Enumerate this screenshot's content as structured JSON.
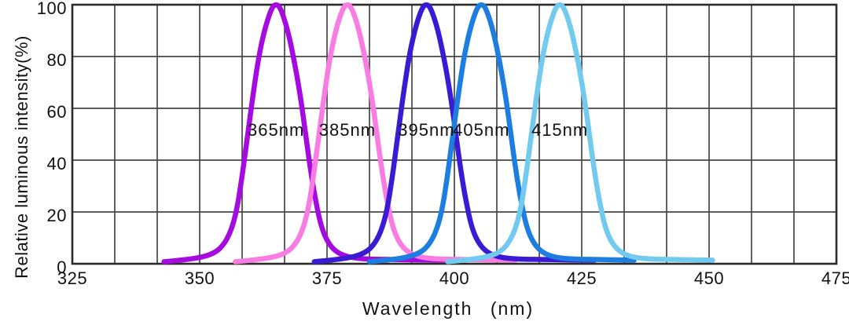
{
  "chart_data": {
    "type": "line",
    "title": "",
    "xlabel": "Wavelength (nm)",
    "ylabel": "Relative luminous intensity(%)",
    "xlim": [
      325,
      475
    ],
    "ylim": [
      0,
      100
    ],
    "x_ticks": [
      325,
      350,
      375,
      400,
      425,
      450,
      475
    ],
    "y_ticks": [
      0,
      20,
      40,
      60,
      80,
      100
    ],
    "x_grid_divisions": 18,
    "grid": "on",
    "legend": "none",
    "series": [
      {
        "label": "365nm",
        "nominal_peak_nm": 365,
        "peak_nm_as_drawn": 365.0,
        "peak_intensity_pct": 100,
        "color": "#A50ADF",
        "label_anchor": {
          "nm": 365.0,
          "pct": 51.5
        },
        "points": [
          [
            343,
            0.8
          ],
          [
            349,
            1.8
          ],
          [
            353,
            4
          ],
          [
            355,
            8
          ],
          [
            356.4,
            14
          ],
          [
            357.4,
            22
          ],
          [
            358.2,
            32
          ],
          [
            358.9,
            42
          ],
          [
            359.7,
            54
          ],
          [
            360.6,
            67
          ],
          [
            361.6,
            80
          ],
          [
            362.7,
            90
          ],
          [
            363.8,
            97
          ],
          [
            364.5,
            99.7
          ],
          [
            365,
            100
          ],
          [
            365.5,
            99.7
          ],
          [
            366.2,
            97
          ],
          [
            367.3,
            90
          ],
          [
            368.4,
            80
          ],
          [
            369.5,
            68
          ],
          [
            370.4,
            56
          ],
          [
            371.2,
            44
          ],
          [
            372,
            33
          ],
          [
            372.9,
            23
          ],
          [
            373.9,
            14
          ],
          [
            375.2,
            8
          ],
          [
            377,
            4.2
          ],
          [
            379.5,
            2.4
          ],
          [
            383,
            1.8
          ],
          [
            389,
            1.6
          ],
          [
            398,
            1.4
          ]
        ]
      },
      {
        "label": "385nm",
        "nominal_peak_nm": 385,
        "peak_nm_as_drawn": 379.0,
        "peak_intensity_pct": 100,
        "color": "#F97CE3",
        "label_anchor": {
          "nm": 379.0,
          "pct": 51.5
        },
        "points": [
          [
            357,
            0.8
          ],
          [
            363,
            1.8
          ],
          [
            367,
            4
          ],
          [
            369,
            8
          ],
          [
            370.4,
            14
          ],
          [
            371.4,
            22
          ],
          [
            372.2,
            32
          ],
          [
            372.9,
            42
          ],
          [
            373.7,
            54
          ],
          [
            374.6,
            67
          ],
          [
            375.6,
            80
          ],
          [
            376.7,
            90
          ],
          [
            377.8,
            97
          ],
          [
            378.5,
            99.7
          ],
          [
            379,
            100
          ],
          [
            379.5,
            99.7
          ],
          [
            380.2,
            97
          ],
          [
            381.3,
            90
          ],
          [
            382.4,
            80
          ],
          [
            383.5,
            68
          ],
          [
            384.4,
            56
          ],
          [
            385.2,
            44
          ],
          [
            386,
            33
          ],
          [
            386.9,
            23
          ],
          [
            387.9,
            14
          ],
          [
            389.2,
            8
          ],
          [
            391,
            4.2
          ],
          [
            393.5,
            2.4
          ],
          [
            397,
            1.8
          ],
          [
            403,
            1.6
          ],
          [
            412,
            1.4
          ]
        ]
      },
      {
        "label": "395nm",
        "nominal_peak_nm": 395,
        "peak_nm_as_drawn": 394.5,
        "peak_intensity_pct": 100,
        "color": "#3A1BD3",
        "label_anchor": {
          "nm": 394.5,
          "pct": 51.5
        },
        "points": [
          [
            372.5,
            0.8
          ],
          [
            378.5,
            1.8
          ],
          [
            382.5,
            4
          ],
          [
            384.5,
            8
          ],
          [
            385.9,
            14
          ],
          [
            386.9,
            22
          ],
          [
            387.7,
            32
          ],
          [
            388.4,
            42
          ],
          [
            389.2,
            54
          ],
          [
            390.1,
            67
          ],
          [
            391.1,
            80
          ],
          [
            392.2,
            90
          ],
          [
            393.3,
            97
          ],
          [
            394,
            99.7
          ],
          [
            394.5,
            100
          ],
          [
            395,
            99.7
          ],
          [
            395.7,
            97
          ],
          [
            396.8,
            90
          ],
          [
            397.9,
            80
          ],
          [
            399,
            68
          ],
          [
            399.9,
            56
          ],
          [
            400.7,
            44
          ],
          [
            401.5,
            33
          ],
          [
            402.4,
            23
          ],
          [
            403.4,
            14
          ],
          [
            404.7,
            8
          ],
          [
            406.5,
            4.2
          ],
          [
            409,
            2.4
          ],
          [
            412.5,
            1.8
          ],
          [
            418.5,
            1.6
          ],
          [
            427.5,
            1.4
          ]
        ]
      },
      {
        "label": "405nm",
        "nominal_peak_nm": 405,
        "peak_nm_as_drawn": 405.3,
        "peak_intensity_pct": 100,
        "color": "#1E7EDF",
        "label_anchor": {
          "nm": 405.3,
          "pct": 51.5
        },
        "points": [
          [
            383.3,
            0.8
          ],
          [
            389.3,
            1.8
          ],
          [
            393.3,
            4
          ],
          [
            395.3,
            8
          ],
          [
            396.7,
            14
          ],
          [
            397.7,
            22
          ],
          [
            398.5,
            32
          ],
          [
            399.2,
            42
          ],
          [
            400,
            54
          ],
          [
            400.9,
            67
          ],
          [
            401.9,
            80
          ],
          [
            403,
            90
          ],
          [
            404.1,
            97
          ],
          [
            404.8,
            99.7
          ],
          [
            405.3,
            100
          ],
          [
            405.8,
            99.7
          ],
          [
            406.5,
            97
          ],
          [
            407.6,
            90
          ],
          [
            408.7,
            80
          ],
          [
            409.8,
            68
          ],
          [
            410.7,
            56
          ],
          [
            411.5,
            44
          ],
          [
            412.3,
            33
          ],
          [
            413.2,
            23
          ],
          [
            414.2,
            14
          ],
          [
            415.5,
            8
          ],
          [
            417.3,
            4.2
          ],
          [
            419.8,
            2.4
          ],
          [
            423.3,
            1.8
          ],
          [
            429.3,
            1.6
          ],
          [
            435.3,
            1.4
          ]
        ]
      },
      {
        "label": "415nm",
        "nominal_peak_nm": 415,
        "peak_nm_as_drawn": 420.7,
        "peak_intensity_pct": 100,
        "color": "#73CAEF",
        "label_anchor": {
          "nm": 420.7,
          "pct": 51.5
        },
        "points": [
          [
            398.7,
            0.8
          ],
          [
            404.7,
            1.8
          ],
          [
            408.7,
            4
          ],
          [
            410.7,
            8
          ],
          [
            412.1,
            14
          ],
          [
            413.1,
            22
          ],
          [
            413.9,
            32
          ],
          [
            414.6,
            42
          ],
          [
            415.4,
            54
          ],
          [
            416.3,
            67
          ],
          [
            417.3,
            80
          ],
          [
            418.4,
            90
          ],
          [
            419.5,
            97
          ],
          [
            420.2,
            99.7
          ],
          [
            420.7,
            100
          ],
          [
            421.2,
            99.7
          ],
          [
            421.9,
            97
          ],
          [
            423,
            90
          ],
          [
            424.1,
            80
          ],
          [
            425.2,
            68
          ],
          [
            426.1,
            56
          ],
          [
            426.9,
            44
          ],
          [
            427.7,
            33
          ],
          [
            428.6,
            23
          ],
          [
            429.6,
            14
          ],
          [
            430.9,
            8
          ],
          [
            432.7,
            4.2
          ],
          [
            435.2,
            2.4
          ],
          [
            438.7,
            1.8
          ],
          [
            444.7,
            1.6
          ],
          [
            450.7,
            1.4
          ]
        ]
      }
    ]
  },
  "styles": {
    "background": "#ffffff",
    "grid_color": "#474747",
    "border_color": "#2b2b2b",
    "text_color": "#111111",
    "curve_stroke_width": 6.5
  }
}
